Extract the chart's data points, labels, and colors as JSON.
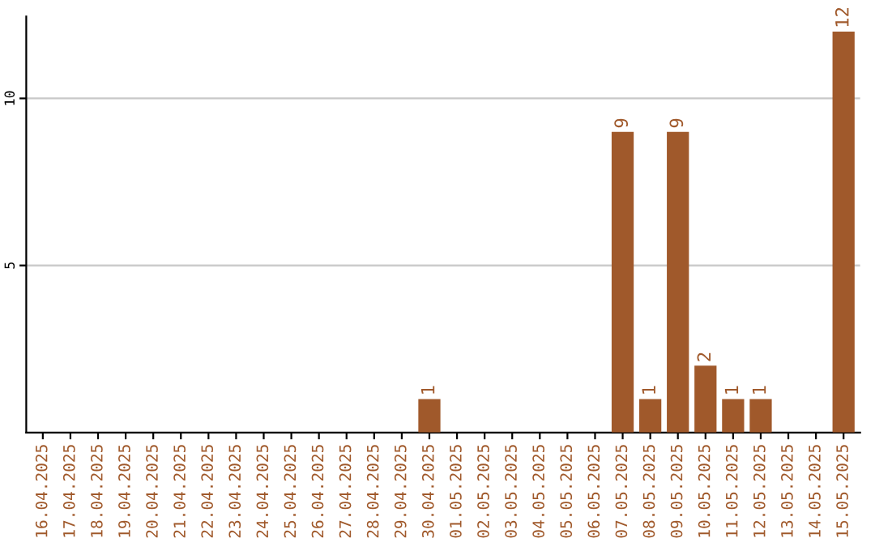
{
  "chart_data": {
    "type": "bar",
    "categories": [
      "16.04.2025",
      "17.04.2025",
      "18.04.2025",
      "19.04.2025",
      "20.04.2025",
      "21.04.2025",
      "22.04.2025",
      "23.04.2025",
      "24.04.2025",
      "25.04.2025",
      "26.04.2025",
      "27.04.2025",
      "28.04.2025",
      "29.04.2025",
      "30.04.2025",
      "01.05.2025",
      "02.05.2025",
      "03.05.2025",
      "04.05.2025",
      "05.05.2025",
      "06.05.2025",
      "07.05.2025",
      "08.05.2025",
      "09.05.2025",
      "10.05.2025",
      "11.05.2025",
      "12.05.2025",
      "13.05.2025",
      "14.05.2025",
      "15.05.2025"
    ],
    "values": [
      0,
      0,
      0,
      0,
      0,
      0,
      0,
      0,
      0,
      0,
      0,
      0,
      0,
      0,
      1,
      0,
      0,
      0,
      0,
      0,
      0,
      9,
      1,
      9,
      2,
      1,
      1,
      0,
      0,
      12
    ],
    "value_labels": [
      null,
      null,
      null,
      null,
      null,
      null,
      null,
      null,
      null,
      null,
      null,
      null,
      null,
      null,
      "1",
      null,
      null,
      null,
      null,
      null,
      null,
      "9",
      "1",
      "9",
      "2",
      "1",
      "1",
      null,
      null,
      "12"
    ],
    "color": "#a0592b",
    "ylim": [
      0,
      12.45
    ],
    "yticks": [
      5,
      10
    ],
    "grid": "y"
  }
}
